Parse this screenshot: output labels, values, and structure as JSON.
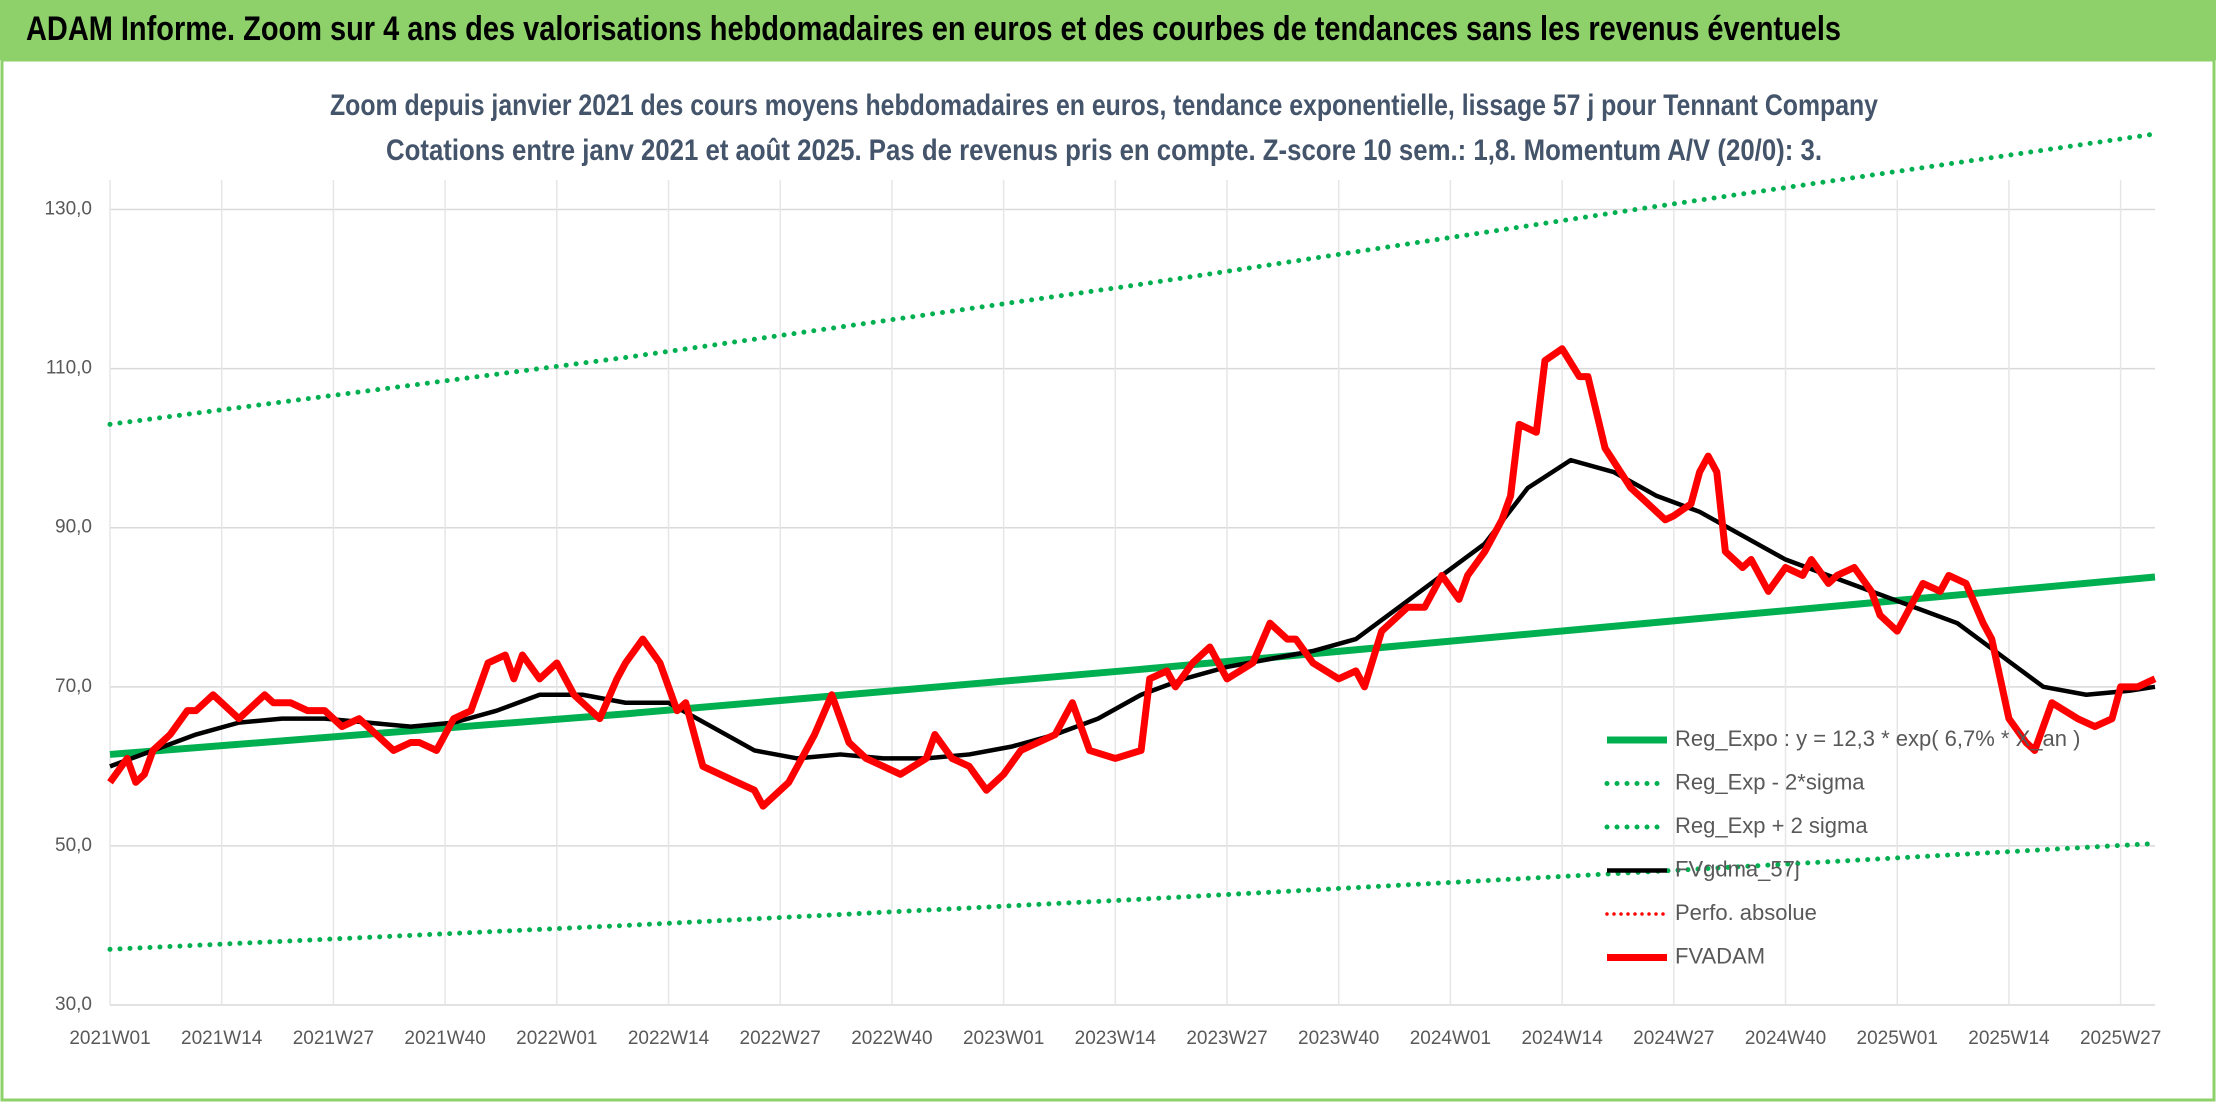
{
  "header": {
    "title": "ADAM Informe. Zoom sur 4 ans des valorisations hebdomadaires en euros et des courbes de tendances sans les revenus éventuels"
  },
  "chart_data": {
    "type": "line",
    "title": "Zoom depuis janvier 2021 des cours moyens hebdomadaires en euros, tendance exponentielle, lissage 57 j pour Tennant Company",
    "subtitle": "Cotations entre janv 2021 et août 2025. Pas de revenus pris en compte. Z-score 10 sem.: 1,8. Momentum A/V (20/0): 3.",
    "xlim": [
      0,
      238
    ],
    "xticks": [
      {
        "value": 0,
        "label": "2021W01"
      },
      {
        "value": 13,
        "label": "2021W14"
      },
      {
        "value": 26,
        "label": "2021W27"
      },
      {
        "value": 39,
        "label": "2021W40"
      },
      {
        "value": 52,
        "label": "2022W01"
      },
      {
        "value": 65,
        "label": "2022W14"
      },
      {
        "value": 78,
        "label": "2022W27"
      },
      {
        "value": 91,
        "label": "2022W40"
      },
      {
        "value": 104,
        "label": "2023W01"
      },
      {
        "value": 117,
        "label": "2023W14"
      },
      {
        "value": 130,
        "label": "2023W27"
      },
      {
        "value": 143,
        "label": "2023W40"
      },
      {
        "value": 156,
        "label": "2024W01"
      },
      {
        "value": 169,
        "label": "2024W14"
      },
      {
        "value": 182,
        "label": "2024W27"
      },
      {
        "value": 195,
        "label": "2024W40"
      },
      {
        "value": 208,
        "label": "2025W01"
      },
      {
        "value": 221,
        "label": "2025W14"
      },
      {
        "value": 234,
        "label": "2025W27"
      }
    ],
    "ylim": [
      30,
      140
    ],
    "yticks": [
      {
        "value": 30,
        "label": "30,0"
      },
      {
        "value": 50,
        "label": "50,0"
      },
      {
        "value": 70,
        "label": "70,0"
      },
      {
        "value": 90,
        "label": "90,0"
      },
      {
        "value": 110,
        "label": "110,0"
      },
      {
        "value": 130,
        "label": "130,0"
      }
    ],
    "grid": true,
    "legend": "lower right",
    "series": [
      {
        "name": "Reg_Expo : y = 12,3 * exp( 6,7% * X_an )",
        "color": "#00b050",
        "style": "solid",
        "x": [
          0,
          60,
          120,
          180,
          238
        ],
        "values": [
          61.5,
          66.6,
          72.2,
          78.1,
          83.8
        ]
      },
      {
        "name": "Reg_Exp - 2*sigma",
        "color": "#00b050",
        "style": "dotted",
        "x": [
          0,
          60,
          120,
          180,
          238
        ],
        "values": [
          37,
          40.0,
          43.3,
          46.8,
          50.3
        ]
      },
      {
        "name": "Reg_Exp + 2 sigma",
        "color": "#00b050",
        "style": "dotted",
        "x": [
          0,
          60,
          120,
          180,
          238
        ],
        "values": [
          103,
          111.4,
          120.6,
          130.4,
          139.5
        ]
      },
      {
        "name": "FVgdma_57j",
        "color": "#000000",
        "style": "thin",
        "x": [
          0,
          5,
          10,
          15,
          20,
          25,
          30,
          35,
          40,
          45,
          50,
          55,
          60,
          65,
          70,
          75,
          80,
          85,
          90,
          95,
          100,
          105,
          110,
          115,
          120,
          125,
          130,
          135,
          140,
          145,
          150,
          155,
          160,
          165,
          170,
          175,
          180,
          185,
          190,
          195,
          200,
          205,
          210,
          215,
          220,
          225,
          230,
          235,
          238
        ],
        "values": [
          60,
          62,
          64,
          65.5,
          66,
          66,
          65.5,
          65,
          65.5,
          67,
          69,
          69,
          68,
          68,
          65,
          62,
          61,
          61.5,
          61,
          61,
          61.5,
          62.5,
          64,
          66,
          69,
          71,
          72.5,
          73.5,
          74.5,
          76,
          80,
          84,
          88,
          95,
          98.5,
          97,
          94,
          92,
          89,
          86,
          84,
          82,
          80,
          78,
          74,
          70,
          69,
          69.5,
          70
        ]
      },
      {
        "name": "Perfo. absolue",
        "color": "#ff0000",
        "style": "dotted-thin",
        "x": [],
        "values": []
      },
      {
        "name": "FVADAM",
        "color": "#ff0000",
        "style": "solid",
        "x": [
          0,
          2,
          3,
          4,
          5,
          7,
          9,
          10,
          12,
          13,
          15,
          18,
          19,
          21,
          23,
          25,
          27,
          29,
          31,
          33,
          35,
          36,
          38,
          40,
          42,
          44,
          46,
          47,
          48,
          50,
          52,
          54,
          57,
          59,
          60,
          62,
          64,
          66,
          67,
          69,
          71,
          73,
          75,
          76,
          77,
          79,
          81,
          82,
          84,
          86,
          88,
          90,
          92,
          95,
          96,
          98,
          100,
          102,
          104,
          106,
          108,
          110,
          112,
          114,
          117,
          120,
          121,
          123,
          124,
          126,
          128,
          130,
          133,
          135,
          137,
          138,
          140,
          143,
          145,
          146,
          148,
          151,
          153,
          155,
          157,
          158,
          160,
          162,
          163,
          164,
          166,
          167,
          169,
          171,
          172,
          174,
          177,
          179,
          181,
          182,
          184,
          185,
          186,
          187,
          188,
          190,
          191,
          193,
          195,
          197,
          198,
          200,
          201,
          203,
          205,
          206,
          208,
          209,
          211,
          213,
          214,
          216,
          218,
          219,
          221,
          223,
          224,
          226,
          229,
          231,
          233,
          234,
          236,
          238
        ],
        "values": [
          58,
          61,
          58,
          59,
          62,
          64,
          67,
          67,
          69,
          68,
          66,
          69,
          68,
          68,
          67,
          67,
          65,
          66,
          64,
          62,
          63,
          63,
          62,
          66,
          67,
          73,
          74,
          71,
          74,
          71,
          73,
          69,
          66,
          71,
          73,
          76,
          73,
          67,
          68,
          60,
          59,
          58,
          57,
          55,
          56,
          58,
          62,
          64,
          69,
          63,
          61,
          60,
          59,
          61,
          64,
          61,
          60,
          57,
          59,
          62,
          63,
          64,
          68,
          62,
          61,
          62,
          71,
          72,
          70,
          73,
          75,
          71,
          73,
          78,
          76,
          76,
          73,
          71,
          72,
          70,
          77,
          80,
          80,
          84,
          81,
          84,
          87,
          91,
          94,
          103,
          102,
          111,
          112.5,
          109,
          109,
          100,
          95,
          93,
          91,
          91.5,
          93,
          97,
          99,
          97,
          87,
          85,
          86,
          82,
          85,
          84,
          86,
          83,
          84,
          85,
          82,
          79,
          77,
          79,
          83,
          82,
          84,
          83,
          78,
          76,
          66,
          63,
          62,
          68,
          66,
          65,
          66,
          70,
          70,
          71
        ]
      }
    ]
  }
}
